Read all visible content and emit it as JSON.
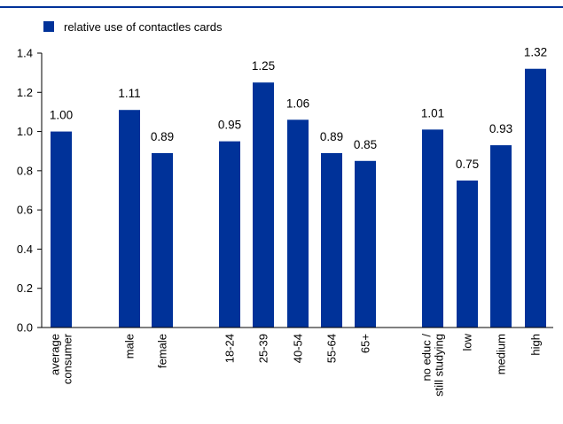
{
  "chart_data": {
    "type": "bar",
    "legend": {
      "label": "relative use of contactles cards",
      "placement": "top-left"
    },
    "colors": {
      "bar": "#003299",
      "top_rule": "#003299",
      "axis": "#000000"
    },
    "categories": [
      {
        "label": [
          "average",
          "consumer"
        ]
      },
      {
        "label": [
          "male"
        ]
      },
      {
        "label": [
          "female"
        ]
      },
      {
        "label": [
          "18-24"
        ]
      },
      {
        "label": [
          "25-39"
        ]
      },
      {
        "label": [
          "40-54"
        ]
      },
      {
        "label": [
          "55-64"
        ]
      },
      {
        "label": [
          "65+"
        ]
      },
      {
        "label": [
          "no educ /",
          "still studying"
        ]
      },
      {
        "label": [
          "low"
        ]
      },
      {
        "label": [
          "medium"
        ]
      },
      {
        "label": [
          "high"
        ]
      }
    ],
    "series": [
      {
        "values": [
          1.0,
          1.11,
          0.89,
          0.95,
          1.25,
          1.06,
          0.89,
          0.85,
          1.01,
          0.75,
          0.93,
          1.32
        ],
        "data_labels": [
          "1.00",
          "1.11",
          "0.89",
          "0.95",
          "1.25",
          "1.06",
          "0.89",
          "0.85",
          "1.01",
          "0.75",
          "0.93",
          "1.32"
        ]
      }
    ],
    "groups": [
      [
        0
      ],
      [
        1,
        2
      ],
      [
        3,
        4,
        5,
        6,
        7
      ],
      [
        8,
        9,
        10,
        11
      ]
    ],
    "ylim": [
      0,
      1.4
    ],
    "yticks": [
      "0.0",
      "0.2",
      "0.4",
      "0.6",
      "0.8",
      "1.0",
      "1.2",
      "1.4"
    ],
    "grid": false,
    "xlabel": "",
    "ylabel": ""
  }
}
